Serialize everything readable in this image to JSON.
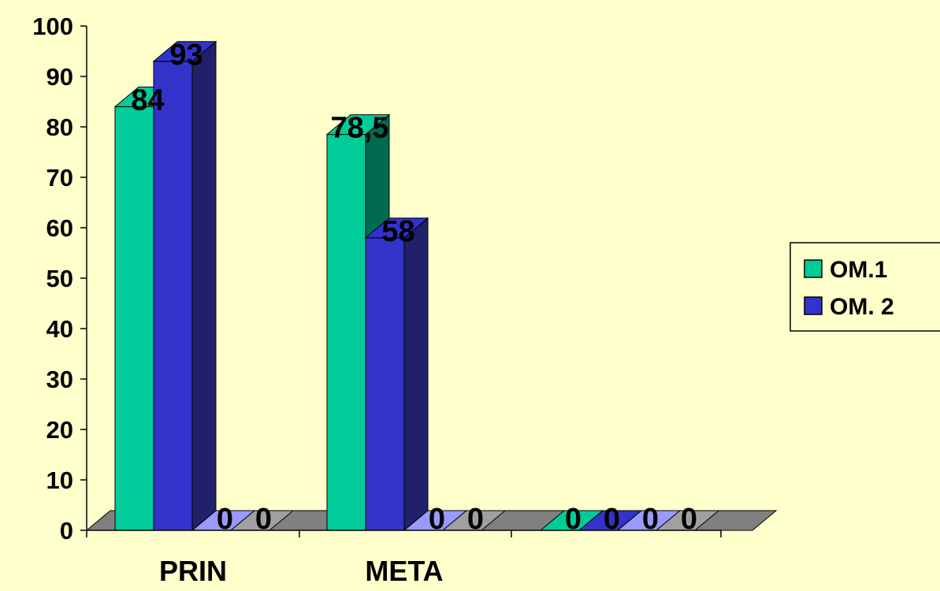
{
  "chart_data": {
    "type": "bar",
    "title": "",
    "xlabel": "",
    "ylabel": "",
    "ylim": [
      0,
      100
    ],
    "yticks": [
      0,
      10,
      20,
      30,
      40,
      50,
      60,
      70,
      80,
      90,
      100
    ],
    "categories": [
      "PRIN",
      "META",
      ""
    ],
    "series": [
      {
        "name": "OM.1",
        "values": [
          84,
          78.5,
          0
        ],
        "labels": [
          "84",
          "78,5",
          "0"
        ],
        "color": "#00CC99",
        "side_color": "#006B50"
      },
      {
        "name": "OM. 2",
        "values": [
          93,
          58,
          0
        ],
        "labels": [
          "93",
          "58",
          "0"
        ],
        "color": "#3333CC",
        "side_color": "#20206B"
      },
      {
        "name": "",
        "values": [
          0,
          0,
          0
        ],
        "labels": [
          "0",
          "0",
          "0"
        ],
        "color": "#9999FF",
        "side_color": "#6B6BB0",
        "in_legend": false
      },
      {
        "name": "",
        "values": [
          0,
          0,
          0
        ],
        "labels": [
          "0",
          "0",
          "0"
        ],
        "color": "#A0A0A0",
        "side_color": "#6E6E6E",
        "in_legend": false
      }
    ],
    "grid": false,
    "legend_position": "right",
    "floor_color": "#808080"
  }
}
